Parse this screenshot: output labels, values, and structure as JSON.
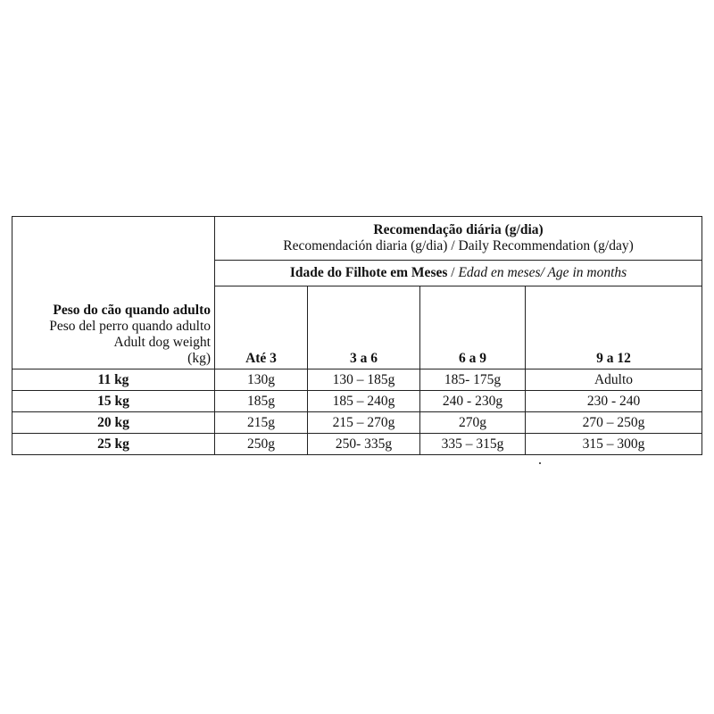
{
  "table": {
    "header": {
      "title_pt": "Recomendação diária (g/dia)",
      "title_es_en": "Recomendación diaria (g/dia) / Daily Recommendation (g/day)",
      "age_pt": "Idade do Filhote em Meses",
      "age_sep": " / ",
      "age_es_en": "Edad en meses/ Age in months",
      "weight_pt": "Peso do cão quando adulto",
      "weight_es": "Peso del perro quando adulto",
      "weight_en": "Adult dog weight",
      "weight_unit": "(kg)",
      "columns": [
        "Até 3",
        "3 a 6",
        "6 a 9",
        "9 a 12"
      ]
    },
    "rows": [
      {
        "weight": "11 kg",
        "values": [
          "130g",
          "130 – 185g",
          "185- 175g",
          "Adulto"
        ]
      },
      {
        "weight": "15 kg",
        "values": [
          "185g",
          "185 – 240g",
          "240 - 230g",
          "230 - 240"
        ]
      },
      {
        "weight": "20 kg",
        "values": [
          "215g",
          "215 – 270g",
          "270g",
          "270 – 250g"
        ]
      },
      {
        "weight": "25 kg",
        "values": [
          "250g",
          "250- 335g",
          "335 – 315g",
          "315 – 300g"
        ]
      }
    ]
  }
}
